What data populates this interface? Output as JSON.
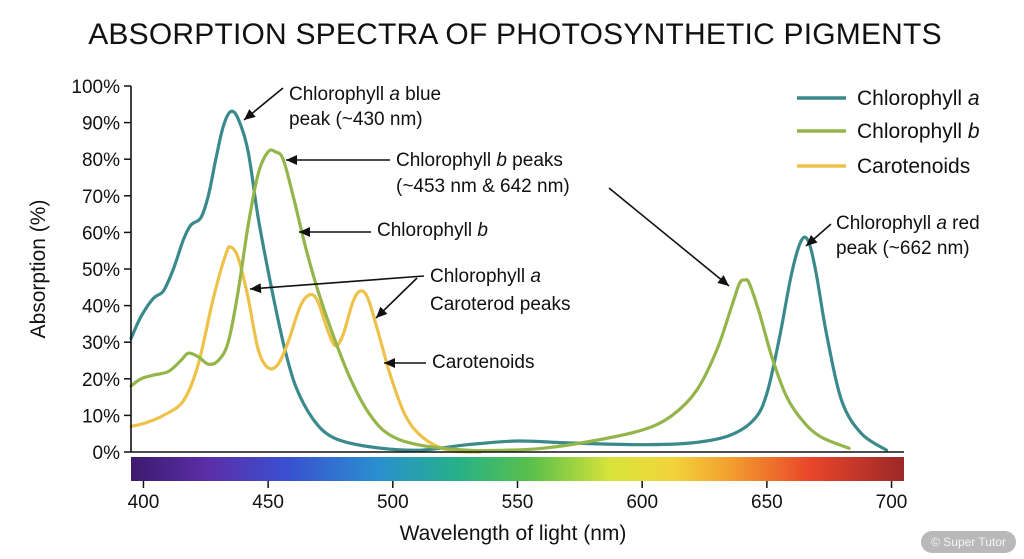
{
  "colors": {
    "chl_a": "#3a8a8c",
    "chl_b": "#94b54a",
    "carot": "#eec24a",
    "text": "#111111"
  },
  "watermark": "© Super Tutor",
  "chart_data": {
    "type": "line",
    "title": "ABSORPTION SPECTRA OF PHOTOSYNTHETIC PIGMENTS",
    "xlabel": "Wavelength of light (nm)",
    "ylabel": "Absorption (%)",
    "xlim": [
      395,
      705
    ],
    "ylim": [
      0,
      100
    ],
    "x_ticks": [
      400,
      450,
      500,
      550,
      600,
      650,
      700
    ],
    "x_tick_labels": [
      "400",
      "450",
      "500",
      "550",
      "600",
      "650",
      "700"
    ],
    "y_ticks": [
      0,
      10,
      20,
      30,
      40,
      50,
      60,
      70,
      80,
      90,
      100
    ],
    "y_tick_labels": [
      "0%",
      "10%",
      "20%",
      "30%",
      "40%",
      "50%",
      "60%",
      "70%",
      "80%",
      "90%",
      "100%"
    ],
    "grid": false,
    "legend_position": "top-right",
    "color_bar": "visible spectrum, violet to red",
    "series": [
      {
        "key": "chl_a",
        "name_prefix": "Chlorophyll ",
        "name_italic": "a",
        "points": [
          [
            395,
            31
          ],
          [
            399,
            37
          ],
          [
            404,
            42
          ],
          [
            408,
            44
          ],
          [
            412,
            50
          ],
          [
            416,
            58
          ],
          [
            419,
            62
          ],
          [
            423,
            64
          ],
          [
            426,
            70
          ],
          [
            429,
            80
          ],
          [
            432,
            89
          ],
          [
            435,
            93
          ],
          [
            438,
            91
          ],
          [
            442,
            82
          ],
          [
            446,
            64
          ],
          [
            451,
            46
          ],
          [
            456,
            30
          ],
          [
            461,
            18
          ],
          [
            468,
            9
          ],
          [
            476,
            4
          ],
          [
            490,
            1.5
          ],
          [
            510,
            0.5
          ],
          [
            530,
            2
          ],
          [
            550,
            3
          ],
          [
            570,
            2.5
          ],
          [
            600,
            2
          ],
          [
            620,
            2.5
          ],
          [
            635,
            4.5
          ],
          [
            645,
            9
          ],
          [
            650,
            16
          ],
          [
            655,
            31
          ],
          [
            660,
            49
          ],
          [
            664,
            58
          ],
          [
            667,
            57
          ],
          [
            670,
            48
          ],
          [
            674,
            32
          ],
          [
            680,
            14
          ],
          [
            688,
            5
          ],
          [
            698,
            0.5
          ]
        ]
      },
      {
        "key": "chl_b",
        "name_prefix": "Chlorophyll ",
        "name_italic": "b",
        "points": [
          [
            395,
            18
          ],
          [
            399,
            20
          ],
          [
            404,
            21
          ],
          [
            410,
            22
          ],
          [
            415,
            25
          ],
          [
            418,
            27
          ],
          [
            422,
            26
          ],
          [
            426,
            24
          ],
          [
            430,
            25
          ],
          [
            434,
            30
          ],
          [
            438,
            44
          ],
          [
            442,
            62
          ],
          [
            446,
            76
          ],
          [
            450,
            82
          ],
          [
            453,
            82
          ],
          [
            456,
            80
          ],
          [
            460,
            70
          ],
          [
            465,
            56
          ],
          [
            470,
            44
          ],
          [
            476,
            32
          ],
          [
            483,
            20
          ],
          [
            490,
            11
          ],
          [
            498,
            5
          ],
          [
            510,
            2
          ],
          [
            530,
            0.5
          ],
          [
            545,
            0.5
          ],
          [
            560,
            1
          ],
          [
            580,
            3
          ],
          [
            600,
            6
          ],
          [
            612,
            10
          ],
          [
            622,
            17
          ],
          [
            630,
            28
          ],
          [
            636,
            40
          ],
          [
            639,
            46
          ],
          [
            641,
            47
          ],
          [
            643,
            46
          ],
          [
            647,
            38
          ],
          [
            652,
            26
          ],
          [
            658,
            15
          ],
          [
            665,
            8
          ],
          [
            672,
            4
          ],
          [
            683,
            1
          ]
        ]
      },
      {
        "key": "carot",
        "name_prefix": "Carotenoids",
        "name_italic": "",
        "points": [
          [
            395,
            7
          ],
          [
            401,
            8
          ],
          [
            408,
            10
          ],
          [
            416,
            14
          ],
          [
            422,
            24
          ],
          [
            428,
            42
          ],
          [
            433,
            54
          ],
          [
            435,
            56
          ],
          [
            438,
            53
          ],
          [
            442,
            42
          ],
          [
            446,
            28
          ],
          [
            450,
            23
          ],
          [
            454,
            24
          ],
          [
            458,
            30
          ],
          [
            463,
            40
          ],
          [
            467,
            43
          ],
          [
            470,
            41
          ],
          [
            474,
            33
          ],
          [
            477,
            29
          ],
          [
            480,
            32
          ],
          [
            484,
            41
          ],
          [
            487,
            44
          ],
          [
            490,
            42
          ],
          [
            494,
            33
          ],
          [
            499,
            21
          ],
          [
            505,
            10
          ],
          [
            512,
            4
          ],
          [
            522,
            0.5
          ],
          [
            535,
            0
          ]
        ]
      }
    ],
    "annotations": [
      {
        "key": "chl_a_blue",
        "lines": [
          [
            "Chlorophyll ",
            "a",
            " blue"
          ],
          [
            "peak (~430 nm)",
            "",
            ""
          ]
        ]
      },
      {
        "key": "chl_b_peaks",
        "lines": [
          [
            "Chlorophyll ",
            "b",
            " peaks"
          ],
          [
            "(~453 nm & 642 nm)",
            "",
            ""
          ]
        ]
      },
      {
        "key": "chl_b",
        "lines": [
          [
            "Chlorophyll ",
            "b",
            ""
          ]
        ]
      },
      {
        "key": "chl_a_carot",
        "lines": [
          [
            "Chlorophyll ",
            "a",
            ""
          ],
          [
            "Caroterod peaks",
            "",
            ""
          ]
        ]
      },
      {
        "key": "carot",
        "lines": [
          [
            "Carotenoids",
            "",
            ""
          ]
        ]
      },
      {
        "key": "chl_a_red",
        "lines": [
          [
            "Chlorophyll ",
            "a",
            " red"
          ],
          [
            "peak (~662 nm)",
            "",
            ""
          ]
        ]
      }
    ]
  }
}
